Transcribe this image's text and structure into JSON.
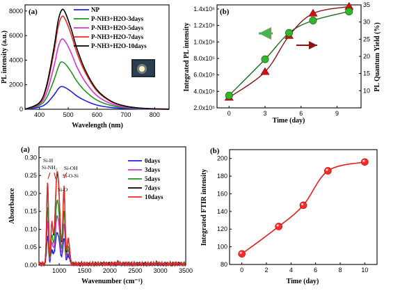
{
  "colors": {
    "np": "#1f1fe6",
    "d3": "#1a9a1a",
    "d5": "#d633d6",
    "d7": "#ee2a24",
    "d10": "#000000",
    "darkred": "#8b1212",
    "green_marker": "#33b52a",
    "red_marker": "#cc1111",
    "abs_green": "#1a9a1a",
    "ftir_red": "#e81c1c",
    "marker_fill": "#ff2b2b"
  },
  "chart_data": [
    {
      "id": "pl_spectra",
      "type": "line",
      "panel_label": "(a)",
      "xlabel": "Wavelength (nm)",
      "ylabel": "PL intensity (a.u.)",
      "xlim": [
        350,
        850
      ],
      "ylim": [
        0,
        8500
      ],
      "xticks": [
        400,
        500,
        600,
        700,
        800
      ],
      "yticks": [
        0,
        2000,
        4000,
        6000,
        8000
      ],
      "legend_position": "top-right",
      "has_inset_photo": true,
      "series": [
        {
          "name": "NP",
          "color_key": "np",
          "peak_x": 475,
          "peak_y": 1850,
          "x": [
            350,
            400,
            425,
            450,
            465,
            475,
            490,
            510,
            530,
            560,
            600,
            650,
            700,
            750,
            800,
            850
          ],
          "y": [
            0,
            180,
            480,
            1150,
            1650,
            1850,
            1760,
            1450,
            1080,
            690,
            340,
            140,
            60,
            25,
            10,
            5
          ]
        },
        {
          "name": "P-NH3+H2O-3days",
          "color_key": "d3",
          "peak_x": 475,
          "peak_y": 3850,
          "x": [
            350,
            400,
            425,
            450,
            465,
            475,
            490,
            510,
            530,
            560,
            600,
            650,
            700,
            750,
            800,
            850
          ],
          "y": [
            0,
            320,
            950,
            2350,
            3400,
            3850,
            3680,
            3050,
            2280,
            1460,
            740,
            300,
            120,
            50,
            20,
            10
          ]
        },
        {
          "name": "P-NH3+H2O-5days",
          "color_key": "d5",
          "peak_x": 477,
          "peak_y": 5700,
          "x": [
            350,
            400,
            425,
            450,
            465,
            477,
            490,
            510,
            530,
            560,
            600,
            650,
            700,
            750,
            800,
            850
          ],
          "y": [
            0,
            420,
            1350,
            3450,
            5050,
            5700,
            5500,
            4600,
            3450,
            2200,
            1100,
            440,
            170,
            70,
            25,
            10
          ]
        },
        {
          "name": "P-NH3+H2O-7days",
          "color_key": "d7",
          "peak_x": 478,
          "peak_y": 7550,
          "x": [
            350,
            400,
            425,
            450,
            465,
            478,
            490,
            510,
            530,
            560,
            600,
            650,
            700,
            750,
            800,
            850
          ],
          "y": [
            0,
            500,
            1800,
            4600,
            6700,
            7550,
            7300,
            6100,
            4600,
            2950,
            1480,
            600,
            230,
            90,
            30,
            12
          ]
        },
        {
          "name": "P-NH3+H2O-10days",
          "color_key": "d10",
          "peak_x": 478,
          "peak_y": 8100,
          "x": [
            350,
            400,
            425,
            450,
            465,
            478,
            490,
            510,
            530,
            560,
            600,
            650,
            700,
            750,
            800,
            850
          ],
          "y": [
            0,
            540,
            1950,
            4950,
            7200,
            8100,
            7850,
            6550,
            4950,
            3150,
            1580,
            640,
            250,
            95,
            35,
            15
          ]
        }
      ]
    },
    {
      "id": "pl_integrated",
      "type": "scatter",
      "panel_label": "(b)",
      "xlabel": "Time (day)",
      "ylabel": "Integrated PL intensity",
      "y2label": "PL Quantum Yield (%)",
      "xlim": [
        -1,
        11
      ],
      "ylim": [
        200000,
        1450000
      ],
      "y2lim": [
        5,
        35
      ],
      "xticks": [
        0,
        3,
        6,
        9
      ],
      "yticks": [
        200000,
        400000,
        600000,
        800000,
        1000000,
        1200000,
        1400000
      ],
      "yticklabels": [
        "2.0x10⁵",
        "4.0x10⁵",
        "6.0x10⁵",
        "8.0x10⁵",
        "1.0x10⁶",
        "1.2x10⁶",
        "1.4x10⁶"
      ],
      "y2ticks": [
        10,
        15,
        20,
        25,
        30,
        35
      ],
      "series": [
        {
          "name": "Integrated PL intensity",
          "axis": "left",
          "marker": "circle",
          "color_key": "green_marker",
          "x": [
            0,
            3,
            5,
            7,
            10
          ],
          "y": [
            350000,
            790000,
            1110000,
            1260000,
            1370000
          ]
        },
        {
          "name": "PL Quantum Yield",
          "axis": "right",
          "marker": "triangle",
          "color_key": "red_marker",
          "x": [
            0,
            3,
            5,
            7,
            10
          ],
          "y": [
            8,
            15.5,
            26,
            32.5,
            34.5
          ]
        }
      ]
    },
    {
      "id": "absorbance",
      "type": "line",
      "panel_label": "(a)",
      "xlabel": "Wavenumber (cm⁻¹)",
      "ylabel": "Absorbance",
      "xlim": [
        600,
        3500
      ],
      "ylim": [
        0,
        0.33
      ],
      "xticks": [
        1000,
        1500,
        2000,
        2500,
        3000,
        3500
      ],
      "yticks": [
        0,
        0.05,
        0.1,
        0.15,
        0.2,
        0.25,
        0.3
      ],
      "yticklabels": [
        "0.00",
        "0.05",
        "0.10",
        "0.15",
        "0.20",
        "0.25",
        "0.30"
      ],
      "legend_position": "top-right",
      "annotations": [
        "Si-H",
        "Si-NH₂",
        "Si-OH",
        "Si-O-Si",
        "Si-O"
      ],
      "series": [
        {
          "name": "0days",
          "color_key": "np",
          "peak": 0.088
        },
        {
          "name": "3days",
          "color_key": "d5",
          "peak": 0.135
        },
        {
          "name": "5days",
          "color_key": "abs_green",
          "peak": 0.18
        },
        {
          "name": "7days",
          "color_key": "d10",
          "peak": 0.255
        },
        {
          "name": "10days",
          "color_key": "d7",
          "peak": 0.26
        }
      ]
    },
    {
      "id": "ftir_integrated",
      "type": "scatter",
      "panel_label": "(b)",
      "xlabel": "Time (day)",
      "ylabel": "Integrated FTIR intensity",
      "xlim": [
        -1,
        11
      ],
      "ylim": [
        80,
        210
      ],
      "xticks": [
        0,
        2,
        4,
        6,
        8,
        10
      ],
      "yticks": [
        80,
        100,
        120,
        140,
        160,
        180,
        200
      ],
      "series": [
        {
          "name": "Integrated FTIR intensity",
          "marker": "circle",
          "color_key": "marker_fill",
          "x": [
            0,
            3,
            5,
            7,
            10
          ],
          "y": [
            92,
            123,
            147,
            186,
            196
          ]
        }
      ]
    }
  ]
}
